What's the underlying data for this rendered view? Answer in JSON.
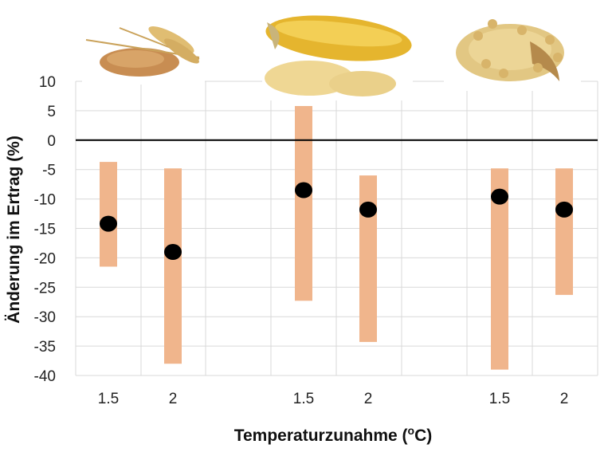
{
  "chart_data": {
    "type": "scatter",
    "xlabel_main": "Temperaturzunahme (",
    "xlabel_sup": "o",
    "xlabel_end": "C)",
    "ylabel": "Änderung im Ertrag (%)",
    "ylim": [
      -40,
      10
    ],
    "yticks": [
      10,
      5,
      0,
      -5,
      -10,
      -15,
      -20,
      -25,
      -30,
      -35,
      -40
    ],
    "categories": [
      "1.5",
      "2",
      "1.5",
      "2",
      "1.5",
      "2"
    ],
    "groups": [
      {
        "crop": "wheat",
        "icon": "wheat-grain-photo"
      },
      {
        "crop": "maize",
        "icon": "maize-cob-photo"
      },
      {
        "crop": "soybean",
        "icon": "soybean-photo"
      }
    ],
    "series": [
      {
        "values": [
          -14.2,
          -19.0,
          -8.5,
          -11.8,
          -9.6,
          -11.8
        ],
        "range_low": [
          -21.5,
          -38.0,
          -27.3,
          -34.3,
          -39.0,
          -26.3
        ],
        "range_high": [
          -3.7,
          -4.8,
          5.8,
          -6.0,
          -4.8,
          -4.8
        ]
      }
    ],
    "grid": true,
    "colors": {
      "range": "#f0b58c",
      "point": "#000000",
      "zero_line": "#000000",
      "grid": "#d9d9d9"
    }
  }
}
